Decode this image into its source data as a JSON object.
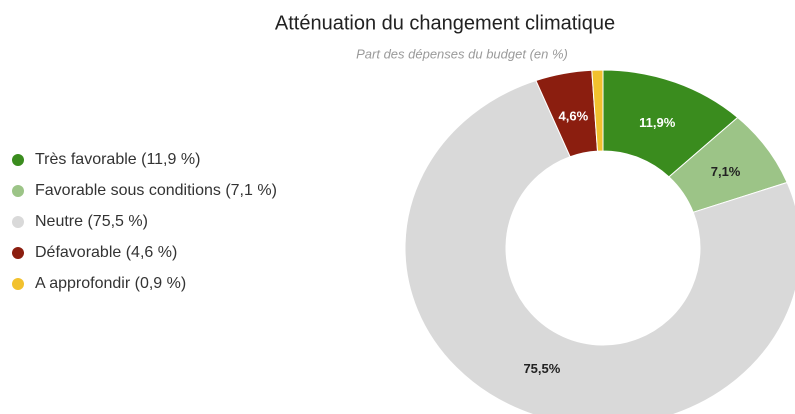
{
  "chart_data": {
    "type": "pie",
    "title": "Atténuation du changement climatique",
    "subtitle": "Part des dépenses du budget (en %)",
    "categories": [
      "Très favorable (11,9 %)",
      "Favorable sous conditions (7,1 %)",
      "Neutre (75,5 %)",
      "Défavorable (4,6 %)",
      "A approfondir (0,9 %)"
    ],
    "values": [
      11.9,
      7.1,
      75.5,
      4.6,
      0.9
    ],
    "value_labels": [
      "11,9%",
      "7,1%",
      "75,5%",
      "4,6%",
      null
    ],
    "colors": [
      "#3a8c1e",
      "#9cc487",
      "#d9d9d9",
      "#8b1e0f",
      "#f2c12e"
    ],
    "donut": true,
    "legend": "left"
  }
}
